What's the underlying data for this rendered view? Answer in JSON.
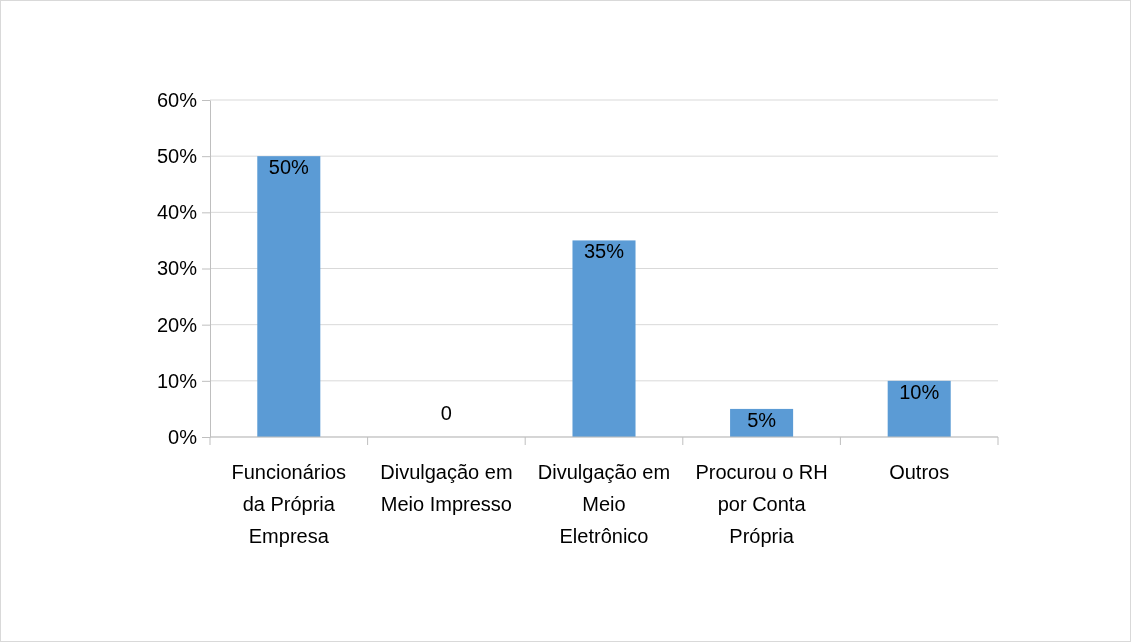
{
  "chart_data": {
    "type": "bar",
    "categories": [
      "Funcionários da Própria Empresa",
      "Divulgação em Meio Impresso",
      "Divulgação em Meio Eletrônico",
      "Procurou o RH por Conta Própria",
      "Outros"
    ],
    "values": [
      50,
      0,
      35,
      5,
      10
    ],
    "value_labels": [
      "50%",
      "0",
      "35%",
      "5%",
      "10%"
    ],
    "color": "#5b9bd5",
    "ylim": [
      0,
      60
    ],
    "yticks": [
      {
        "value": 0,
        "label": "0%"
      },
      {
        "value": 10,
        "label": "10%"
      },
      {
        "value": 20,
        "label": "20%"
      },
      {
        "value": 30,
        "label": "30%"
      },
      {
        "value": 40,
        "label": "40%"
      },
      {
        "value": 50,
        "label": "50%"
      },
      {
        "value": 60,
        "label": "60%"
      }
    ],
    "grid": "y"
  }
}
